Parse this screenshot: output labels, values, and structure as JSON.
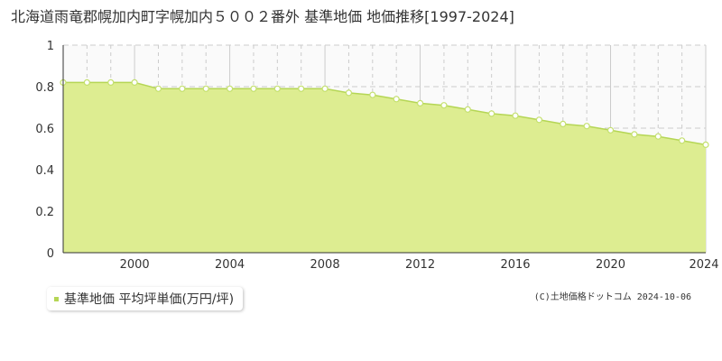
{
  "title": "北海道雨竜郡幌加内町字幌加内５００２番外 基準地価 地価推移[1997-2024]",
  "legend": {
    "label": "基準地価 平均坪単価(万円/坪)"
  },
  "copyright": "(C)土地価格ドットコム 2024-10-06",
  "colors": {
    "fill": "#dded91",
    "line": "#b5d655",
    "grid": "#cccccc",
    "axis": "#333333",
    "marker": "#c4e06e",
    "plot_bg": "#fafafa"
  },
  "chart_data": {
    "type": "area",
    "title": "北海道雨竜郡幌加内町字幌加内５００２番外 基準地価 地価推移[1997-2024]",
    "xlim": [
      1997,
      2024
    ],
    "ylim": [
      0,
      1
    ],
    "x_ticks": [
      2000,
      2004,
      2008,
      2012,
      2016,
      2020,
      2024
    ],
    "y_ticks": [
      0,
      0.2,
      0.4,
      0.6,
      0.8,
      1
    ],
    "y_tick_labels": [
      "0",
      "0.2",
      "0.4",
      "0.6",
      "0.8",
      "1"
    ],
    "grid": true,
    "legend_position": "bottom-left",
    "series": [
      {
        "name": "基準地価 平均坪単価(万円/坪)",
        "x": [
          1997,
          1998,
          1999,
          2000,
          2001,
          2002,
          2003,
          2004,
          2005,
          2006,
          2007,
          2008,
          2009,
          2010,
          2011,
          2012,
          2013,
          2014,
          2015,
          2016,
          2017,
          2018,
          2019,
          2020,
          2021,
          2022,
          2023,
          2024
        ],
        "values": [
          0.82,
          0.82,
          0.82,
          0.82,
          0.79,
          0.79,
          0.79,
          0.79,
          0.79,
          0.79,
          0.79,
          0.79,
          0.77,
          0.76,
          0.74,
          0.72,
          0.71,
          0.69,
          0.67,
          0.66,
          0.64,
          0.62,
          0.61,
          0.59,
          0.57,
          0.56,
          0.54,
          0.52
        ]
      }
    ]
  }
}
